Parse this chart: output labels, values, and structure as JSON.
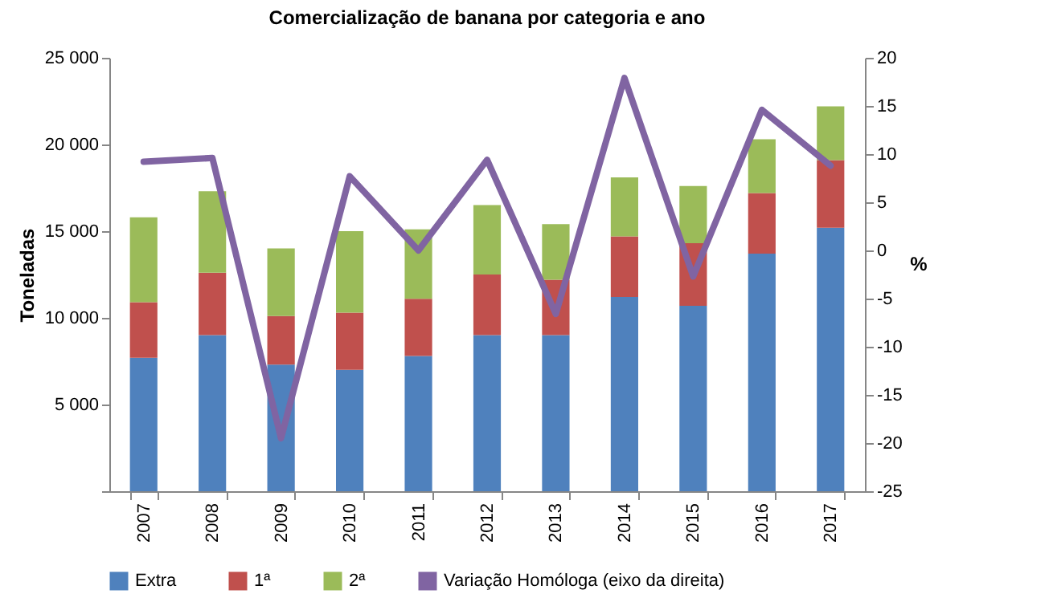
{
  "chart_data": {
    "type": "bar",
    "title": "Comercialização de banana por categoria e ano",
    "ylabel": "Toneladas",
    "y2label": "%",
    "categories": [
      "2007",
      "2008",
      "2009",
      "2010",
      "2011",
      "2012",
      "2013",
      "2014",
      "2015",
      "2016",
      "2017"
    ],
    "stacked": true,
    "legend": "bottom",
    "grid": false,
    "series": [
      {
        "name": "Extra",
        "color": "#4f81bd",
        "values": [
          7700,
          9000,
          7300,
          7000,
          7800,
          9000,
          9000,
          11200,
          10700,
          13700,
          15200
        ]
      },
      {
        "name": "1ª",
        "color": "#c0504d",
        "values": [
          3200,
          3600,
          2800,
          3300,
          3300,
          3500,
          3200,
          3500,
          3600,
          3500,
          3900
        ]
      },
      {
        "name": "2ª",
        "color": "#9bbb59",
        "values": [
          4900,
          4700,
          3900,
          4700,
          4000,
          4000,
          3200,
          3400,
          3300,
          3100,
          3100
        ]
      },
      {
        "name": "Variação Homóloga (eixo da direita)",
        "type": "line",
        "axis": "y2",
        "line_style": "solid",
        "color": "#8064a2",
        "values": [
          9.2,
          9.6,
          -19.5,
          7.7,
          0,
          9.4,
          -6.6,
          17.9,
          -2.7,
          14.6,
          8.8
        ]
      }
    ],
    "ylim": [
      0,
      25000
    ],
    "yticks": [
      {
        "value": 0,
        "label": null
      },
      {
        "value": 5000,
        "label": "5 000"
      },
      {
        "value": 10000,
        "label": "10 000"
      },
      {
        "value": 15000,
        "label": "15 000"
      },
      {
        "value": 20000,
        "label": "20 000"
      },
      {
        "value": 25000,
        "label": "25 000"
      }
    ],
    "y2lim": [
      -25,
      20
    ],
    "y2ticks": [
      -25,
      -20,
      -15,
      -10,
      -5,
      0,
      5,
      10,
      15,
      20
    ]
  }
}
